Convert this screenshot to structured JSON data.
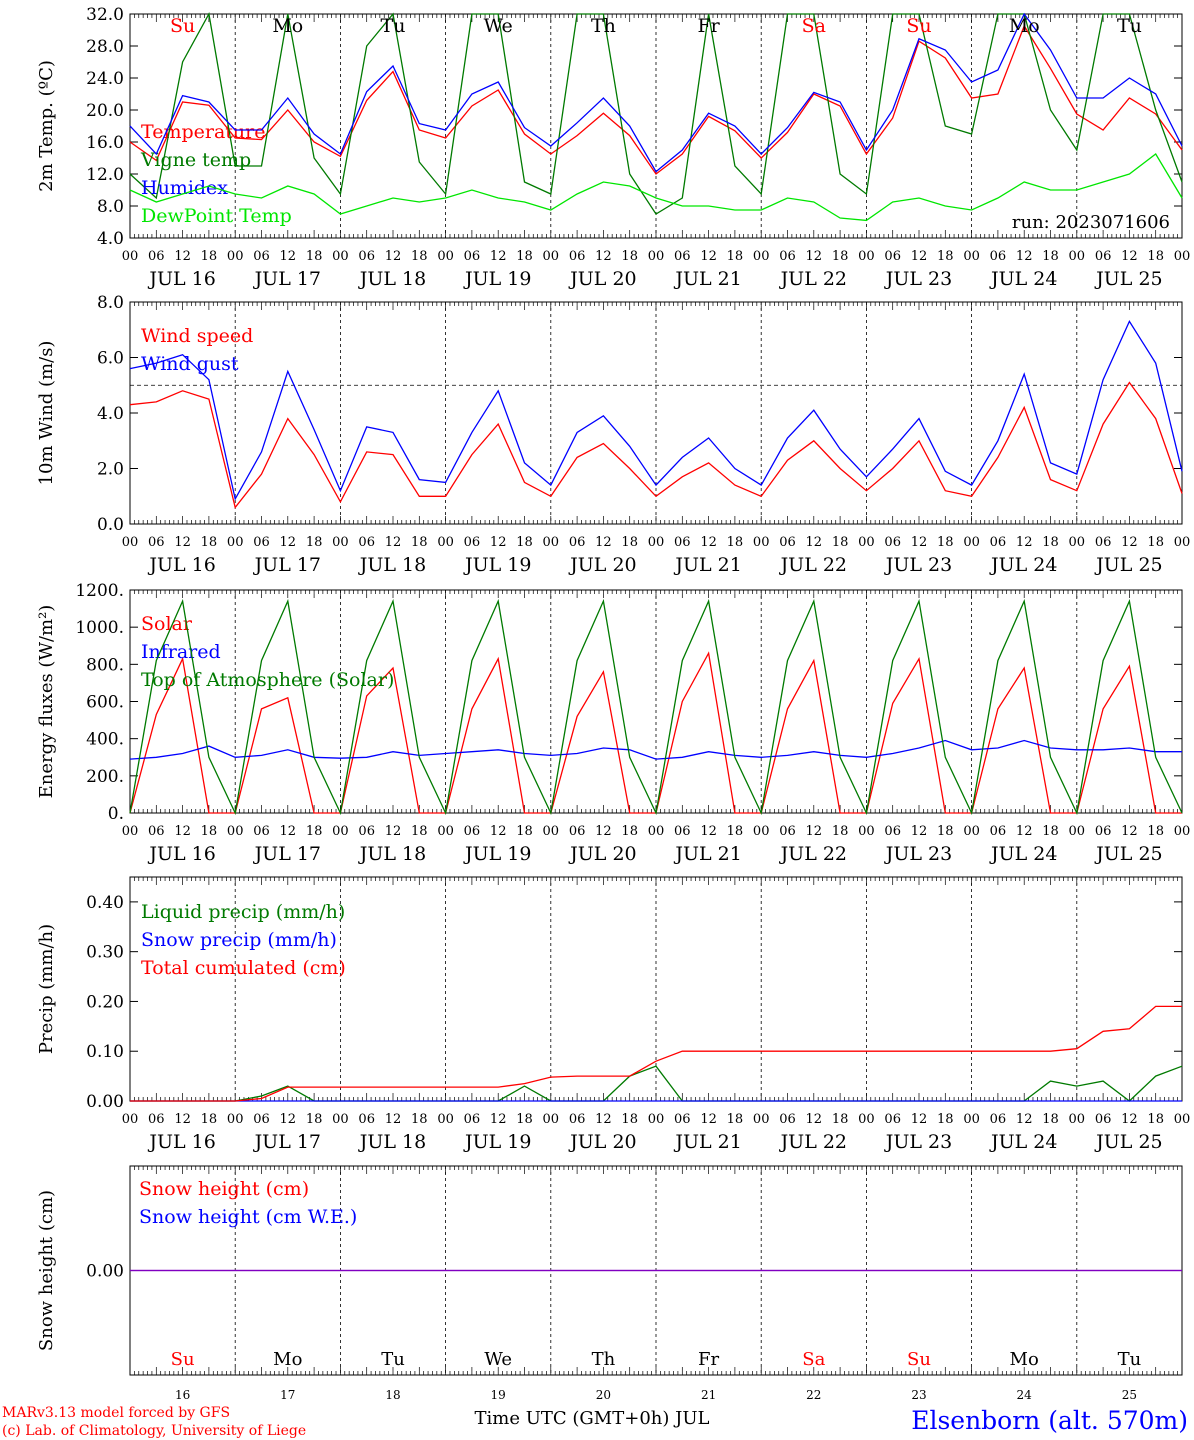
{
  "days": {
    "abbr": [
      "Su",
      "Mo",
      "Tu",
      "We",
      "Th",
      "Fr",
      "Sa",
      "Su",
      "Mo",
      "Tu"
    ],
    "weekend": [
      true,
      false,
      false,
      false,
      false,
      false,
      true,
      true,
      false,
      false
    ],
    "dates": [
      "JUL 16",
      "JUL 17",
      "JUL 18",
      "JUL 19",
      "JUL 20",
      "JUL 21",
      "JUL 22",
      "JUL 23",
      "JUL 24",
      "JUL 25"
    ],
    "day_numbers": [
      "16",
      "17",
      "18",
      "19",
      "20",
      "21",
      "22",
      "23",
      "24",
      "25"
    ],
    "hour_ticks": [
      "00",
      "06",
      "12",
      "18"
    ],
    "final_hour": "00"
  },
  "colors": {
    "red": "#ff0000",
    "blue": "#0000ff",
    "dark_green": "#007a00",
    "light_green": "#00e600",
    "purple": "#8000c0",
    "axis": "#000000"
  },
  "footer": {
    "credit_line1": "MARv3.13 model forced by GFS",
    "credit_line2": "(c) Lab. of Climatology, University of Liege",
    "xlabel": "Time UTC (GMT+0h) JUL",
    "station": "Elsenborn (alt. 570m)"
  },
  "chart_data": [
    {
      "type": "line",
      "ylabel": "2m Temp. (ºC)",
      "ylim": [
        4,
        32
      ],
      "yticks": [
        "4.0",
        "8.0",
        "12.0",
        "16.0",
        "20.0",
        "24.0",
        "28.0",
        "32.0"
      ],
      "annotation": "run: 2023071606",
      "x_hours": [
        0,
        6,
        12,
        18,
        24,
        30,
        36,
        42,
        48,
        54,
        60,
        66,
        72,
        78,
        84,
        90,
        96,
        102,
        108,
        114,
        120,
        126,
        132,
        138,
        144,
        150,
        156,
        162,
        168,
        174,
        180,
        186,
        192,
        198,
        204,
        210,
        216,
        222,
        228,
        234,
        240
      ],
      "series": [
        {
          "name": "Temperature",
          "color": "red",
          "values": [
            16,
            13.7,
            21,
            20.6,
            16.5,
            16.3,
            20,
            16,
            14.2,
            21.2,
            24.8,
            17.5,
            16.5,
            20.5,
            22.5,
            17,
            14.5,
            16.8,
            19.6,
            16.8,
            12,
            14.5,
            19.2,
            17.4,
            14,
            17.2,
            22,
            20.5,
            14.5,
            19,
            28.6,
            26.5,
            21.5,
            22,
            30.5,
            25.2,
            19.5,
            17.5,
            21.5,
            19.5,
            15
          ]
        },
        {
          "name": "Vigne temp",
          "color": "dark_green",
          "values": [
            12,
            9,
            26,
            32,
            13,
            13,
            32,
            14,
            9.5,
            28,
            32,
            13.5,
            9.5,
            32,
            32,
            11,
            9.5,
            32,
            32,
            12,
            7,
            9,
            32,
            13,
            9.5,
            32,
            32,
            12,
            9.5,
            32,
            32,
            18,
            17,
            32,
            32,
            20,
            15,
            32,
            32,
            20,
            11
          ]
        },
        {
          "name": "Humidex",
          "color": "blue",
          "values": [
            18,
            14.5,
            21.8,
            21,
            17.5,
            17.5,
            21.5,
            17,
            14.5,
            22.3,
            25.5,
            18.3,
            17.5,
            22,
            23.5,
            17.8,
            15.5,
            18.4,
            21.5,
            18,
            12.3,
            15,
            19.6,
            18,
            14.5,
            17.8,
            22.2,
            21,
            15,
            20,
            28.9,
            27.5,
            23.5,
            25,
            32,
            27.5,
            21.5,
            21.5,
            24,
            22,
            15.5
          ]
        },
        {
          "name": "DewPoint Temp",
          "color": "light_green",
          "values": [
            10,
            8.5,
            9.5,
            10.5,
            9.5,
            9,
            10.5,
            9.5,
            7,
            8,
            9,
            8.5,
            9,
            10,
            9,
            8.5,
            7.5,
            9.5,
            11,
            10.5,
            9,
            8,
            8,
            7.5,
            7.5,
            9,
            8.5,
            6.5,
            6.2,
            8.5,
            9,
            8,
            7.5,
            9,
            11,
            10,
            10,
            11,
            12,
            14.5,
            9
          ]
        }
      ]
    },
    {
      "type": "line",
      "ylabel": "10m Wind (m/s)",
      "ylim": [
        0,
        8
      ],
      "yticks": [
        "0.0",
        "2.0",
        "4.0",
        "6.0",
        "8.0"
      ],
      "reference_line": 5,
      "x_hours": [
        0,
        6,
        12,
        18,
        24,
        30,
        36,
        42,
        48,
        54,
        60,
        66,
        72,
        78,
        84,
        90,
        96,
        102,
        108,
        114,
        120,
        126,
        132,
        138,
        144,
        150,
        156,
        162,
        168,
        174,
        180,
        186,
        192,
        198,
        204,
        210,
        216,
        222,
        228,
        234,
        240
      ],
      "series": [
        {
          "name": "Wind speed",
          "color": "red",
          "values": [
            4.3,
            4.4,
            4.8,
            4.5,
            0.6,
            1.8,
            3.8,
            2.5,
            0.8,
            2.6,
            2.5,
            1.0,
            1.0,
            2.5,
            3.6,
            1.5,
            1.0,
            2.4,
            2.9,
            2.0,
            1.0,
            1.7,
            2.2,
            1.4,
            1.0,
            2.3,
            3.0,
            2.0,
            1.2,
            2.0,
            3.0,
            1.2,
            1.0,
            2.4,
            4.2,
            1.6,
            1.2,
            3.6,
            5.1,
            3.8,
            1.1
          ]
        },
        {
          "name": "Wind gust",
          "color": "blue",
          "values": [
            5.6,
            5.8,
            6.1,
            5.2,
            0.9,
            2.6,
            5.5,
            3.4,
            1.2,
            3.5,
            3.3,
            1.6,
            1.5,
            3.3,
            4.8,
            2.2,
            1.4,
            3.3,
            3.9,
            2.8,
            1.4,
            2.4,
            3.1,
            2.0,
            1.4,
            3.1,
            4.1,
            2.7,
            1.7,
            2.7,
            3.8,
            1.9,
            1.4,
            3.0,
            5.4,
            2.2,
            1.8,
            5.2,
            7.3,
            5.8,
            1.9
          ]
        }
      ]
    },
    {
      "type": "line",
      "ylabel": "Energy fluxes (W/m²)",
      "ylim": [
        0,
        1200
      ],
      "yticks": [
        "0.",
        "200.",
        "400.",
        "600.",
        "800.",
        "1000.",
        "1200."
      ],
      "x_hours": [
        0,
        6,
        12,
        18,
        24,
        30,
        36,
        42,
        48,
        54,
        60,
        66,
        72,
        78,
        84,
        90,
        96,
        102,
        108,
        114,
        120,
        126,
        132,
        138,
        144,
        150,
        156,
        162,
        168,
        174,
        180,
        186,
        192,
        198,
        204,
        210,
        216,
        222,
        228,
        234,
        240
      ],
      "series": [
        {
          "name": "Solar",
          "color": "red",
          "values": [
            0,
            530,
            830,
            0,
            0,
            560,
            620,
            0,
            0,
            630,
            780,
            0,
            0,
            560,
            830,
            0,
            0,
            520,
            760,
            0,
            0,
            600,
            860,
            0,
            0,
            560,
            820,
            0,
            0,
            590,
            830,
            0,
            0,
            560,
            780,
            0,
            0,
            560,
            790,
            0,
            0
          ]
        },
        {
          "name": "Infrared",
          "color": "blue",
          "values": [
            290,
            300,
            320,
            360,
            300,
            310,
            340,
            300,
            295,
            300,
            330,
            310,
            320,
            330,
            340,
            320,
            310,
            320,
            350,
            340,
            290,
            300,
            330,
            310,
            300,
            310,
            330,
            310,
            300,
            320,
            350,
            390,
            340,
            350,
            390,
            350,
            340,
            340,
            350,
            330,
            330
          ]
        },
        {
          "name": "Top of Atmosphere (Solar)",
          "color": "dark_green",
          "values": [
            0,
            820,
            1140,
            300,
            0,
            820,
            1140,
            300,
            0,
            820,
            1140,
            300,
            0,
            820,
            1140,
            300,
            0,
            820,
            1140,
            300,
            0,
            820,
            1140,
            300,
            0,
            820,
            1140,
            300,
            0,
            820,
            1140,
            300,
            0,
            820,
            1140,
            300,
            0,
            820,
            1140,
            300,
            0
          ]
        }
      ]
    },
    {
      "type": "line",
      "ylabel": "Precip (mm/h)",
      "ylim": [
        0,
        0.45
      ],
      "yticks": [
        "0.00",
        "0.10",
        "0.20",
        "0.30",
        "0.40"
      ],
      "x_hours": [
        0,
        6,
        12,
        18,
        24,
        30,
        36,
        42,
        48,
        54,
        60,
        66,
        72,
        78,
        84,
        90,
        96,
        102,
        108,
        114,
        120,
        126,
        132,
        138,
        144,
        150,
        156,
        162,
        168,
        174,
        180,
        186,
        192,
        198,
        204,
        210,
        216,
        222,
        228,
        234,
        240
      ],
      "series": [
        {
          "name": "Liquid precip (mm/h)",
          "color": "dark_green",
          "values": [
            0,
            0,
            0,
            0,
            0,
            0.01,
            0.03,
            0,
            0,
            0,
            0,
            0,
            0,
            0,
            0,
            0.03,
            0,
            0,
            0,
            0.05,
            0.07,
            0,
            0,
            0,
            0,
            0,
            0,
            0,
            0,
            0,
            0,
            0,
            0,
            0,
            0,
            0.04,
            0.03,
            0.04,
            0,
            0.05,
            0.07
          ]
        },
        {
          "name": "Snow precip (mm/h)",
          "color": "blue",
          "values": [
            0,
            0,
            0,
            0,
            0,
            0,
            0,
            0,
            0,
            0,
            0,
            0,
            0,
            0,
            0,
            0,
            0,
            0,
            0,
            0,
            0,
            0,
            0,
            0,
            0,
            0,
            0,
            0,
            0,
            0,
            0,
            0,
            0,
            0,
            0,
            0,
            0,
            0,
            0,
            0,
            0
          ]
        },
        {
          "name": "Total cumulated (cm)",
          "color": "red",
          "values": [
            0,
            0,
            0,
            0,
            0,
            0.005,
            0.028,
            0.028,
            0.028,
            0.028,
            0.028,
            0.028,
            0.028,
            0.028,
            0.028,
            0.035,
            0.048,
            0.05,
            0.05,
            0.05,
            0.08,
            0.1,
            0.1,
            0.1,
            0.1,
            0.1,
            0.1,
            0.1,
            0.1,
            0.1,
            0.1,
            0.1,
            0.1,
            0.1,
            0.1,
            0.1,
            0.105,
            0.14,
            0.145,
            0.19,
            0.19
          ]
        }
      ]
    },
    {
      "type": "line",
      "ylabel": "Snow height (cm)",
      "ylim": [
        -0.5,
        0.5
      ],
      "yticks": [
        "0.00"
      ],
      "x_hours": [
        0,
        240
      ],
      "series": [
        {
          "name": "Snow height (cm)",
          "color": "red",
          "values": [
            0,
            0
          ]
        },
        {
          "name": "Snow height (cm W.E.)",
          "color": "blue",
          "values": [
            0,
            0
          ]
        }
      ]
    }
  ]
}
